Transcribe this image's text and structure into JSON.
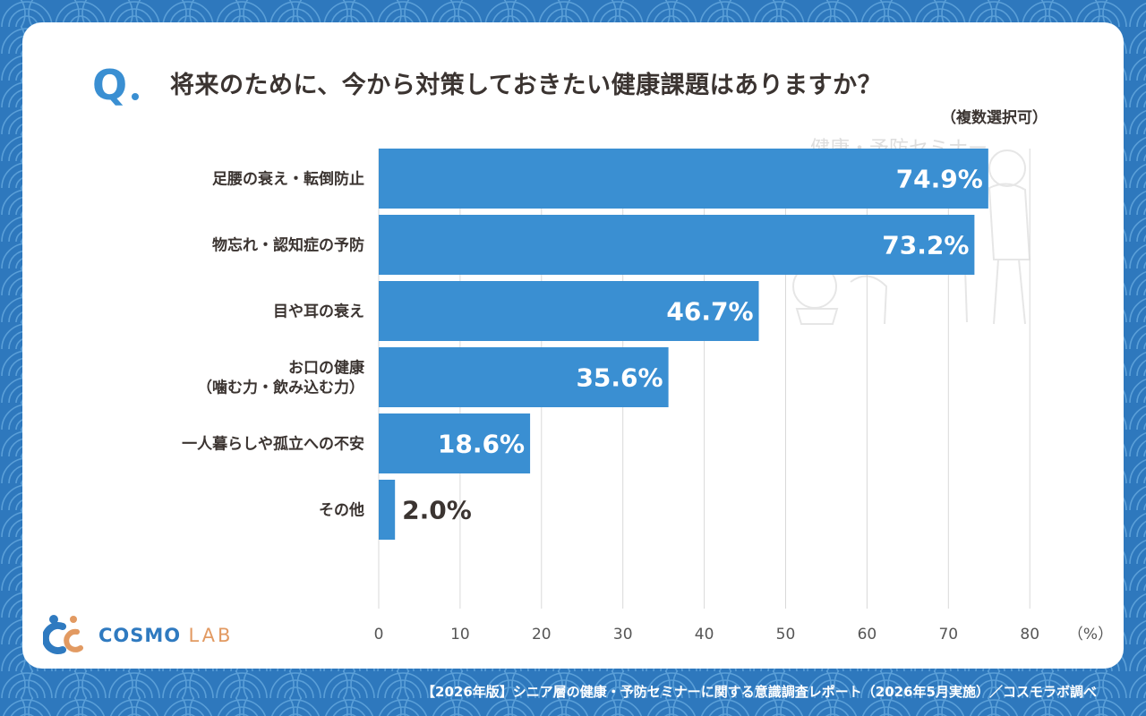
{
  "question": {
    "mark": "Q",
    "text": "将来のために、今から対策しておきたい健康課題はありますか？",
    "note": "（複数選択可）"
  },
  "chart_data": {
    "type": "bar",
    "orientation": "horizontal",
    "categories": [
      "足腰の衰え・転倒防止",
      "物忘れ・認知症の予防",
      "目や耳の衰え",
      "お口の健康\n（噛む力・飲み込む力）",
      "一人暮らしや孤立への不安",
      "その他"
    ],
    "values": [
      74.9,
      73.2,
      46.7,
      35.6,
      18.6,
      2.0
    ],
    "value_labels": [
      "74.9%",
      "73.2%",
      "46.7%",
      "35.6%",
      "18.6%",
      "2.0%"
    ],
    "xlim": [
      0,
      80
    ],
    "xticks": [
      "0",
      "10",
      "20",
      "30",
      "40",
      "50",
      "60",
      "70",
      "80"
    ],
    "xunit": "（%）",
    "grid": true,
    "colors": {
      "bar": "#3a8fd2",
      "label_inside": "#ffffff",
      "label_outside": "#3b3431",
      "grid": "#d9d9d9"
    }
  },
  "illustration": {
    "caption": "健康・予防セミナー"
  },
  "logo": {
    "name": "COSMO",
    "suffix": "LAB"
  },
  "footer": "【2026年版】シニア層の健康・予防セミナーに関する意識調査レポート（2026年5月実施）／コスモラボ調べ",
  "colors": {
    "background": "#2e78bd",
    "card": "#ffffff",
    "accent": "#3a8fd2",
    "text": "#3b3431"
  }
}
